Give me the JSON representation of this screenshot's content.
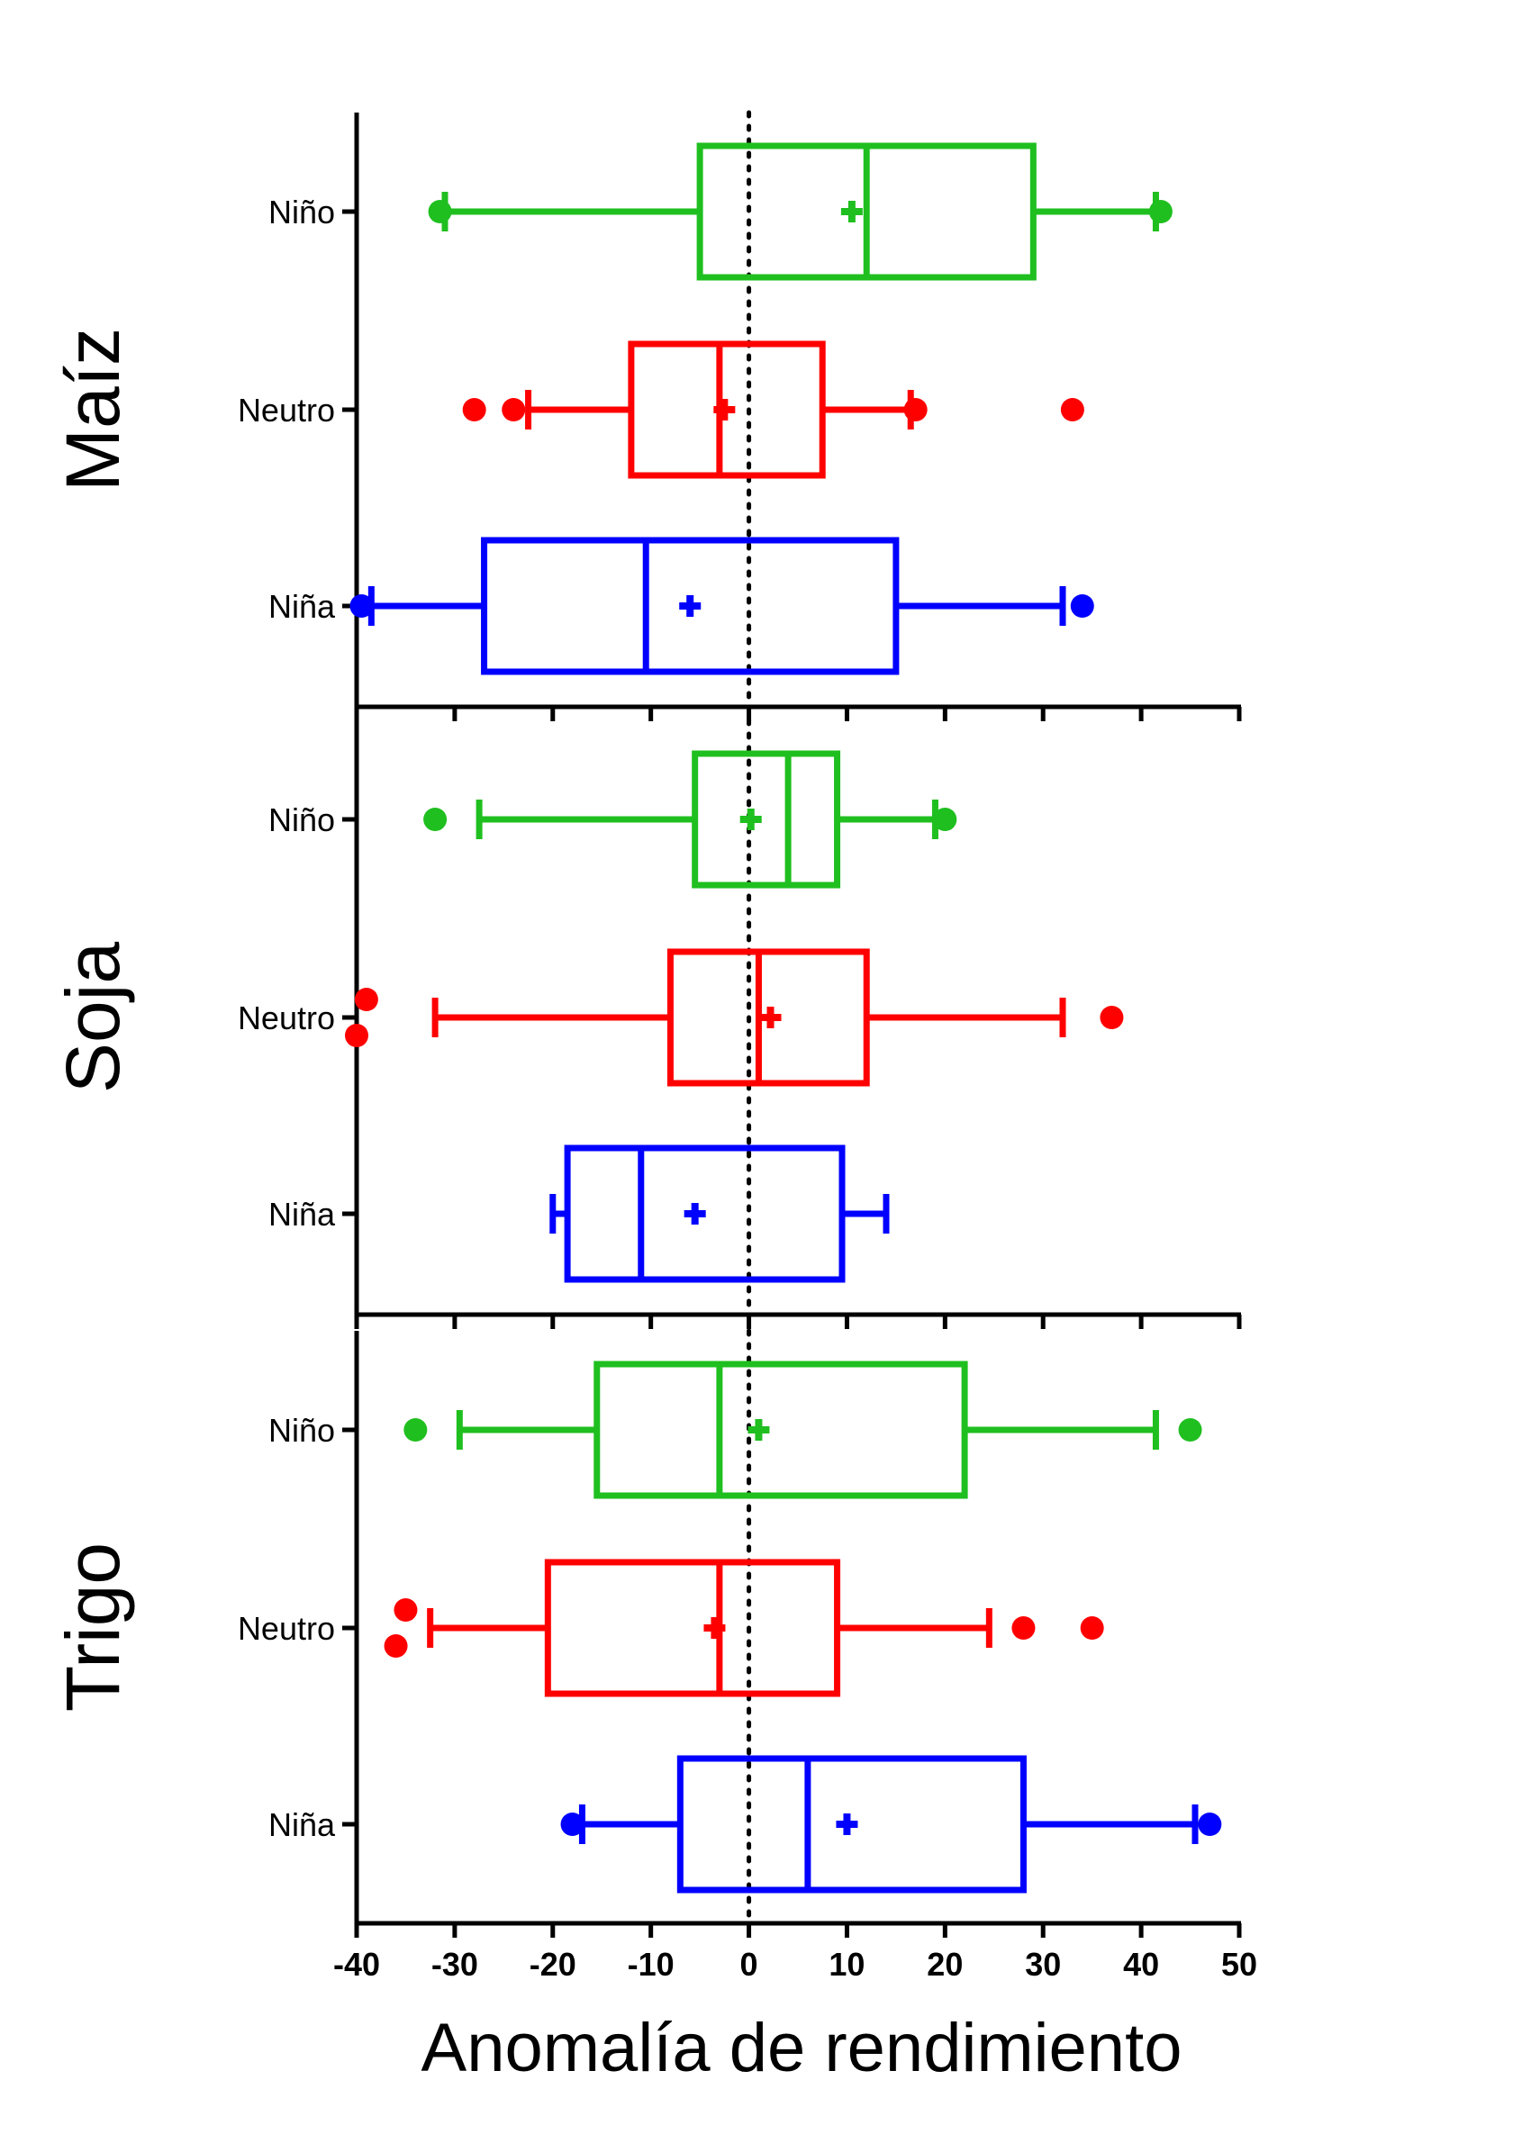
{
  "chart_data": {
    "type": "boxplot",
    "orientation": "horizontal",
    "xlabel": "Anomalía de rendimiento",
    "xlim": [
      -40,
      50
    ],
    "xticks": [
      -40,
      -30,
      -20,
      -10,
      0,
      10,
      20,
      30,
      40,
      50
    ],
    "reference_line": {
      "x": 0,
      "style": "dotted"
    },
    "categories": [
      "Niño",
      "Neutro",
      "Niña"
    ],
    "colors": {
      "Niño": "#1fbf1f",
      "Neutro": "#ff0000",
      "Niña": "#0000ff"
    },
    "panels": [
      {
        "name": "Maíz",
        "boxes": [
          {
            "category": "Niño",
            "whisker_low": -31,
            "q1": -5,
            "median": 12,
            "q3": 29,
            "whisker_high": 41.5,
            "mean": 10.5,
            "outliers": [
              -31.5,
              42
            ]
          },
          {
            "category": "Neutro",
            "whisker_low": -22.5,
            "q1": -12,
            "median": -3,
            "q3": 7.5,
            "whisker_high": 16.5,
            "mean": -2.5,
            "outliers": [
              -28,
              -24,
              17,
              33
            ]
          },
          {
            "category": "Niña",
            "whisker_low": -38.5,
            "q1": -27,
            "median": -10.5,
            "q3": 15,
            "whisker_high": 32,
            "mean": -6,
            "outliers": [
              -39.5,
              34
            ]
          }
        ]
      },
      {
        "name": "Soja",
        "boxes": [
          {
            "category": "Niño",
            "whisker_low": -27.5,
            "q1": -5.5,
            "median": 4,
            "q3": 9,
            "whisker_high": 19,
            "mean": 0.2,
            "outliers": [
              -32,
              20
            ]
          },
          {
            "category": "Neutro",
            "whisker_low": -32,
            "q1": -8,
            "median": 1,
            "q3": 12,
            "whisker_high": 32,
            "mean": 2.2,
            "outliers": [
              -39,
              -40,
              37
            ]
          },
          {
            "category": "Niña",
            "whisker_low": -20,
            "q1": -18.5,
            "median": -11,
            "q3": 9.5,
            "whisker_high": 14,
            "mean": -5.5,
            "outliers": []
          }
        ]
      },
      {
        "name": "Trigo",
        "boxes": [
          {
            "category": "Niño",
            "whisker_low": -29.5,
            "q1": -15.5,
            "median": -3,
            "q3": 22,
            "whisker_high": 41.5,
            "mean": 1,
            "outliers": [
              -34,
              45
            ]
          },
          {
            "category": "Neutro",
            "whisker_low": -32.5,
            "q1": -20.5,
            "median": -3,
            "q3": 9,
            "whisker_high": 24.5,
            "mean": -3.5,
            "outliers": [
              -35,
              -36,
              28,
              35
            ]
          },
          {
            "category": "Niña",
            "whisker_low": -17,
            "q1": -7,
            "median": 6,
            "q3": 28,
            "whisker_high": 45.5,
            "mean": 10,
            "outliers": [
              -18,
              47
            ]
          }
        ]
      }
    ]
  }
}
